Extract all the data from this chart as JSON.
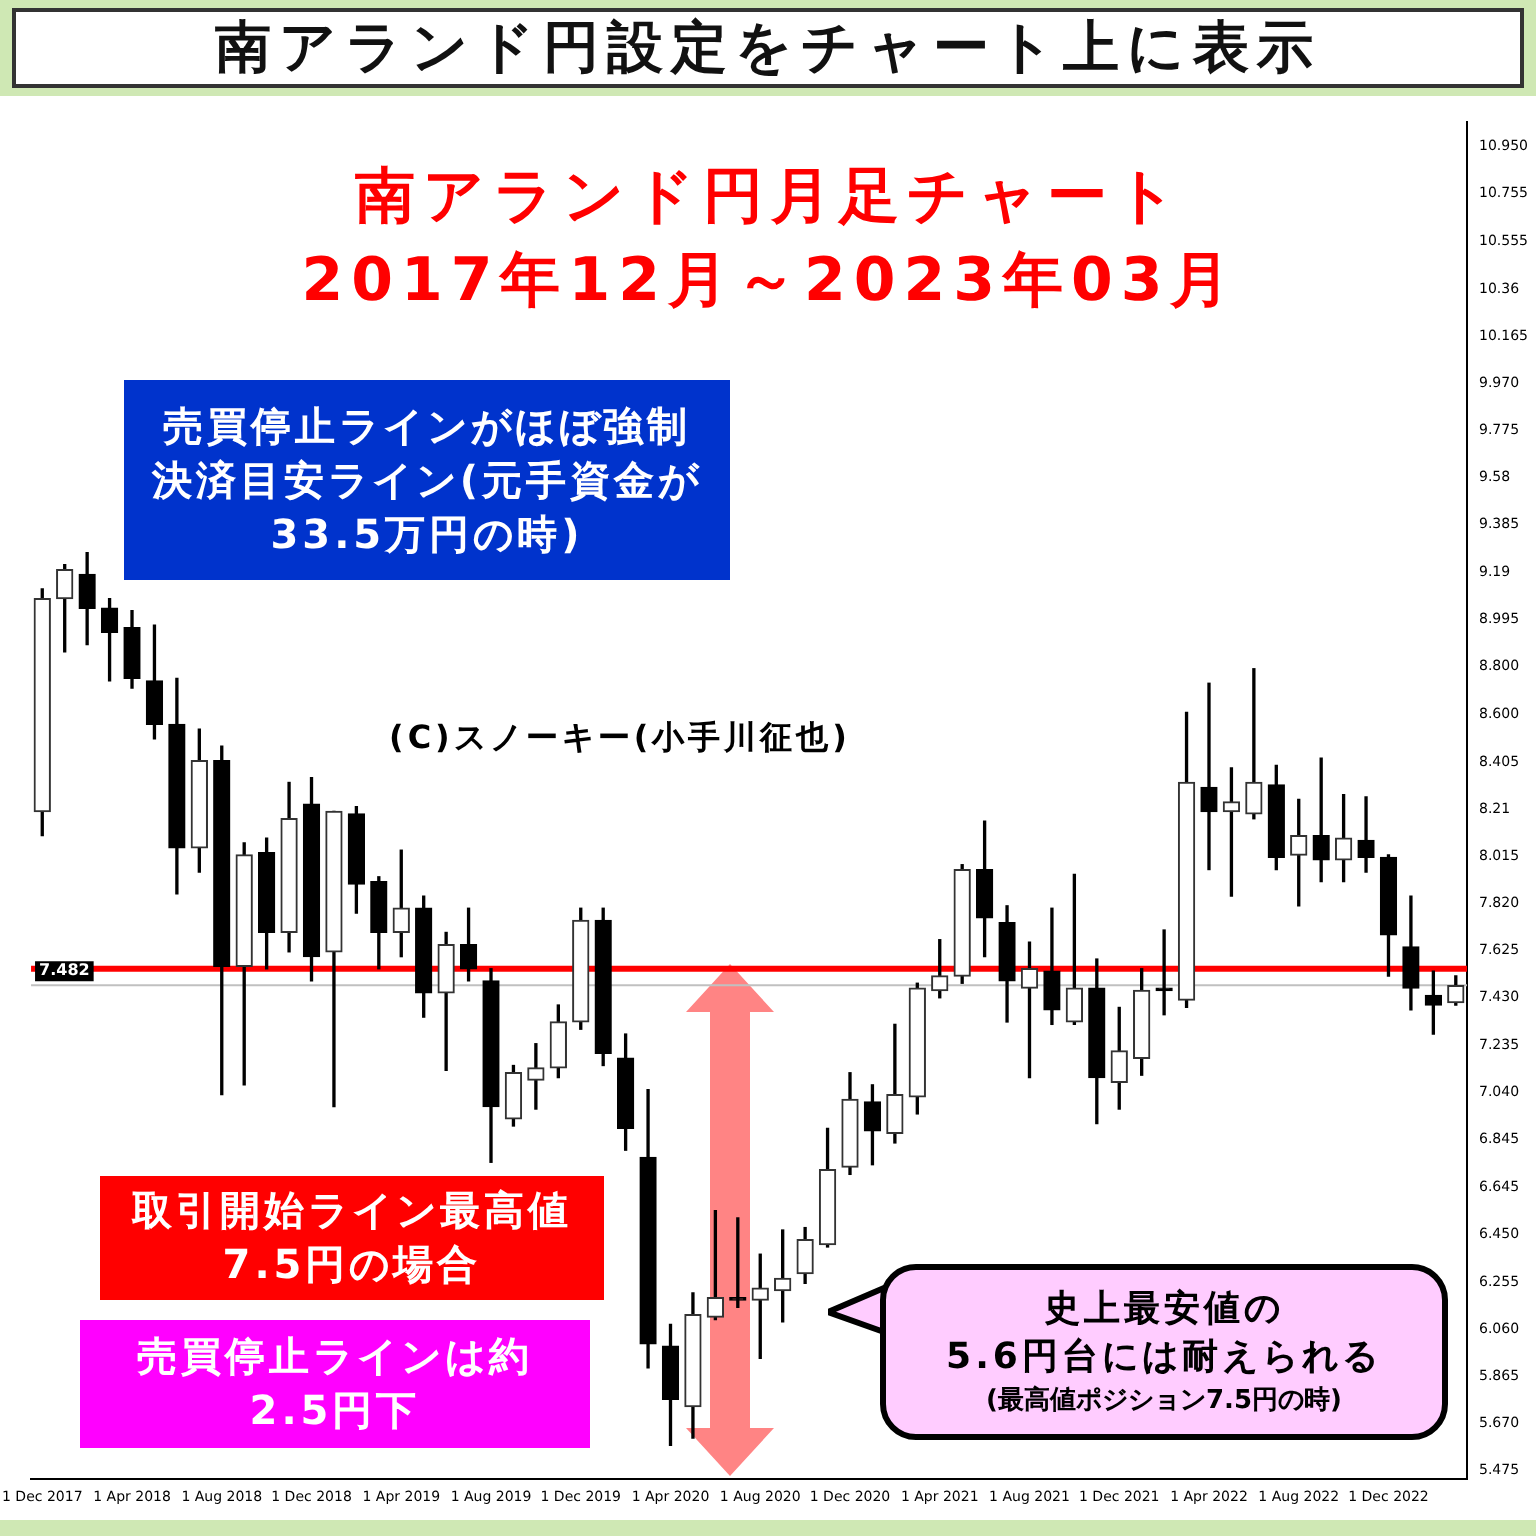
{
  "chart_data": {
    "type": "candlestick",
    "title": "南アランド円設定をチャート上に表示",
    "subtitle": "南アランド円月足チャート\n2017年12月～2023年03月",
    "categories": [
      "1 Dec 2017",
      null,
      null,
      null,
      "1 Apr 2018",
      null,
      null,
      null,
      "1 Aug 2018",
      null,
      null,
      null,
      "1 Dec 2018",
      null,
      null,
      null,
      "1 Apr 2019",
      null,
      null,
      null,
      "1 Aug 2019",
      null,
      null,
      null,
      "1 Dec 2019",
      null,
      null,
      null,
      "1 Apr 2020",
      null,
      null,
      null,
      "1 Aug 2020",
      null,
      null,
      null,
      "1 Dec 2020",
      null,
      null,
      null,
      "1 Apr 2021",
      null,
      null,
      null,
      "1 Aug 2021",
      null,
      null,
      null,
      "1 Dec 2021",
      null,
      null,
      null,
      "1 Apr 2022",
      null,
      null,
      null,
      "1 Aug 2022",
      null,
      null,
      null,
      "1 Dec 2022",
      null,
      null,
      null
    ],
    "colors": [
      "#333333",
      "#333333",
      "#000000",
      "#000000",
      "#000000",
      "#000000",
      "#000000",
      "#333333",
      "#000000",
      "#333333",
      "#000000",
      "#333333",
      "#000000",
      "#333333",
      "#000000",
      "#000000",
      "#333333",
      "#000000",
      "#333333",
      "#000000",
      "#000000",
      "#333333",
      "#333333",
      "#333333",
      "#333333",
      "#000000",
      "#000000",
      "#000000",
      "#000000",
      "#333333",
      "#333333",
      "#000000",
      "#333333",
      "#333333",
      "#333333",
      "#333333",
      "#333333",
      "#000000",
      "#333333",
      "#333333",
      "#333333",
      "#333333",
      "#000000",
      "#000000",
      "#333333",
      "#000000",
      "#333333",
      "#000000",
      "#333333",
      "#333333",
      "#000000",
      "#333333",
      "#000000",
      "#333333",
      "#333333",
      "#000000",
      "#333333",
      "#000000",
      "#333333",
      "#000000",
      "#000000",
      "#000000",
      "#000000",
      "#333333"
    ],
    "ohlc": [
      [
        8.2,
        9.12,
        8.1,
        9.08
      ],
      [
        9.08,
        9.22,
        8.86,
        9.2
      ],
      [
        9.18,
        9.27,
        8.89,
        9.04
      ],
      [
        9.04,
        9.08,
        8.74,
        8.94
      ],
      [
        8.96,
        9.03,
        8.71,
        8.75
      ],
      [
        8.74,
        8.97,
        8.5,
        8.56
      ],
      [
        8.56,
        8.75,
        7.86,
        8.05
      ],
      [
        8.05,
        8.54,
        7.95,
        8.41
      ],
      [
        8.41,
        8.47,
        7.03,
        7.56
      ],
      [
        7.56,
        8.07,
        7.07,
        8.02
      ],
      [
        8.03,
        8.09,
        7.55,
        7.7
      ],
      [
        7.7,
        8.32,
        7.62,
        8.17
      ],
      [
        8.23,
        8.34,
        7.5,
        7.6
      ],
      [
        7.62,
        8.2,
        6.98,
        8.2
      ],
      [
        8.19,
        8.22,
        7.78,
        7.9
      ],
      [
        7.91,
        7.93,
        7.55,
        7.7
      ],
      [
        7.7,
        8.04,
        7.6,
        7.8
      ],
      [
        7.8,
        7.85,
        7.35,
        7.45
      ],
      [
        7.45,
        7.7,
        7.13,
        7.65
      ],
      [
        7.65,
        7.8,
        7.5,
        7.55
      ],
      [
        7.5,
        7.55,
        6.75,
        6.98
      ],
      [
        6.93,
        7.15,
        6.9,
        7.12
      ],
      [
        7.09,
        7.24,
        6.97,
        7.14
      ],
      [
        7.14,
        7.4,
        7.1,
        7.33
      ],
      [
        7.33,
        7.8,
        7.3,
        7.75
      ],
      [
        7.75,
        7.8,
        7.15,
        7.2
      ],
      [
        7.18,
        7.28,
        6.8,
        6.89
      ],
      [
        6.77,
        7.05,
        5.9,
        6.0
      ],
      [
        5.99,
        6.08,
        5.58,
        5.77
      ],
      [
        5.74,
        6.21,
        5.61,
        6.12
      ],
      [
        6.11,
        6.55,
        6.1,
        6.19
      ],
      [
        6.19,
        6.52,
        6.15,
        6.18
      ],
      [
        6.18,
        6.37,
        5.94,
        6.23
      ],
      [
        6.22,
        6.47,
        6.09,
        6.27
      ],
      [
        6.29,
        6.48,
        6.25,
        6.43
      ],
      [
        6.41,
        6.89,
        6.4,
        6.72
      ],
      [
        6.73,
        7.12,
        6.7,
        7.01
      ],
      [
        7.0,
        7.07,
        6.74,
        6.88
      ],
      [
        6.87,
        7.32,
        6.83,
        7.03
      ],
      [
        7.02,
        7.49,
        6.95,
        7.47
      ],
      [
        7.46,
        7.67,
        7.43,
        7.52
      ],
      [
        7.52,
        7.98,
        7.49,
        7.96
      ],
      [
        7.96,
        8.16,
        7.6,
        7.76
      ],
      [
        7.74,
        7.81,
        7.33,
        7.5
      ],
      [
        7.47,
        7.66,
        7.1,
        7.55
      ],
      [
        7.54,
        7.8,
        7.32,
        7.38
      ],
      [
        7.33,
        7.94,
        7.32,
        7.47
      ],
      [
        7.47,
        7.59,
        6.91,
        7.1
      ],
      [
        7.08,
        7.39,
        6.97,
        7.21
      ],
      [
        7.18,
        7.55,
        7.11,
        7.46
      ],
      [
        7.47,
        7.71,
        7.36,
        7.46
      ],
      [
        7.42,
        8.61,
        7.39,
        8.32
      ],
      [
        8.3,
        8.73,
        7.96,
        8.2
      ],
      [
        8.2,
        8.38,
        7.85,
        8.24
      ],
      [
        8.19,
        8.79,
        8.17,
        8.32
      ],
      [
        8.31,
        8.39,
        7.96,
        8.01
      ],
      [
        8.02,
        8.25,
        7.81,
        8.1
      ],
      [
        8.1,
        8.42,
        7.91,
        8.0
      ],
      [
        8.0,
        8.27,
        7.91,
        8.09
      ],
      [
        8.08,
        8.26,
        7.95,
        8.01
      ],
      [
        8.01,
        8.02,
        7.52,
        7.69
      ],
      [
        7.64,
        7.85,
        7.38,
        7.47
      ],
      [
        7.44,
        7.54,
        7.28,
        7.4
      ],
      [
        7.41,
        7.52,
        7.4,
        7.48
      ]
    ],
    "ylim": [
      5.44,
      11.05
    ],
    "yticks": [
      {
        "value": 10.95,
        "label": "10.950"
      },
      10.755,
      10.555,
      10.36,
      10.165,
      {
        "value": 9.97,
        "label": "9.970"
      },
      9.775,
      9.58,
      9.385,
      9.19,
      8.995,
      {
        "value": 8.8,
        "label": "8.800"
      },
      {
        "value": 8.6,
        "label": "8.600"
      },
      8.405,
      8.21,
      8.015,
      {
        "value": 7.82,
        "label": "7.820"
      },
      7.625,
      {
        "value": 7.43,
        "label": "7.430"
      },
      7.235,
      {
        "value": 7.04,
        "label": "7.040"
      },
      6.845,
      6.645,
      {
        "value": 6.45,
        "label": "6.450"
      },
      6.255,
      {
        "value": 6.06,
        "label": "6.060"
      },
      5.865,
      {
        "value": 5.67,
        "label": "5.670"
      },
      5.475
    ],
    "ref_lines": [
      {
        "axis": "y",
        "value": 7.55,
        "color": "#ff0000"
      },
      {
        "axis": "y",
        "value": 7.482,
        "label": "7.482",
        "color": "#c0c0c0"
      }
    ],
    "annotations": [
      "売買停止ラインがほぼ強制決済目安ライン(元手資金が33.5万円の時)",
      "(C)スノーキー(小手川征也)",
      "取引開始ライン最高値7.5円の場合",
      "売買停止ラインは約2.5円下",
      "史上最安値の\n5.6円台には耐えられる\n(最高値ポジション7.5円の時)"
    ]
  }
}
